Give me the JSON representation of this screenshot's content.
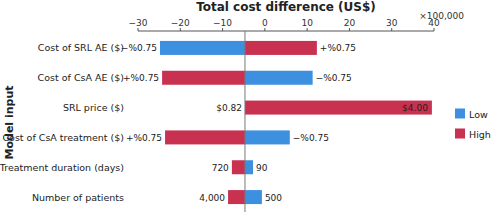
{
  "chart_data": {
    "type": "bar",
    "orientation": "horizontal",
    "title": "Total cost difference (US$)",
    "x_multiplier": "×100,000",
    "ylabel": "Model input",
    "categories": [
      "Cost of SRL AE ($)",
      "Cost of CsA AE ($)",
      "SRL price ($)",
      "Cost of CsA treatment ($)",
      "Treatment duration (days)",
      "Number of patients"
    ],
    "base": -4.7,
    "series": [
      {
        "name": "Low",
        "color": "#3d8fe0",
        "values": [
          -24.8,
          11.3,
          -4.7,
          5.9,
          -2.8,
          -0.7
        ],
        "point_labels": [
          "−%0.75",
          "−%0.75",
          "$0.82",
          "−%0.75",
          "90",
          "500"
        ]
      },
      {
        "name": "High",
        "color": "#c8314f",
        "values": [
          12.3,
          -24.3,
          39.5,
          -23.6,
          -7.8,
          -8.7
        ],
        "point_labels": [
          "+%0.75",
          "+%0.75",
          "$4.00",
          "+%0.75",
          "720",
          "4,000"
        ]
      }
    ],
    "xlim": [
      -30,
      40
    ],
    "xticks": [
      {
        "value": -30,
        "label": "−30"
      },
      {
        "value": -20,
        "label": "−20"
      },
      {
        "value": -10,
        "label": "−10"
      },
      0,
      10,
      20,
      30,
      40
    ],
    "legend": "right"
  }
}
